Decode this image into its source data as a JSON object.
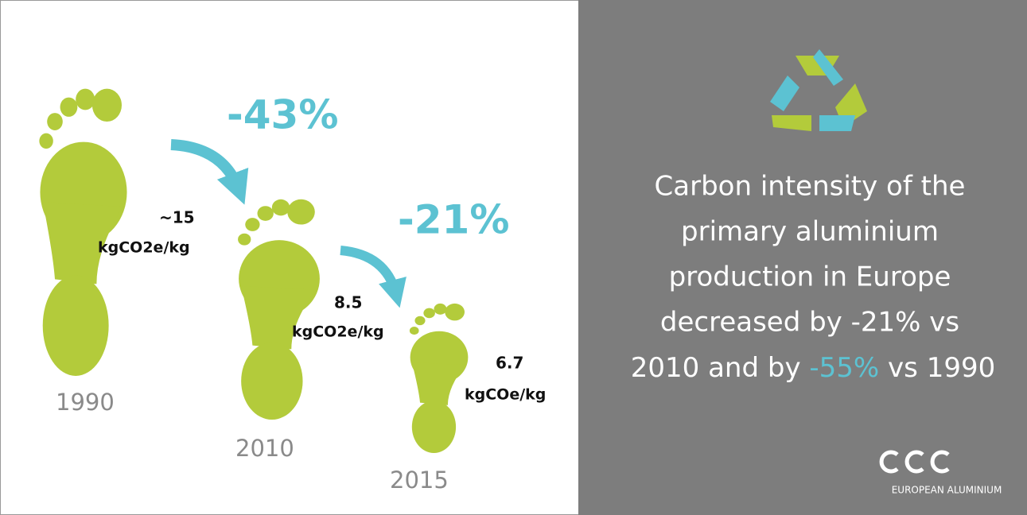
{
  "changes": [
    "-43%",
    "-21%"
  ],
  "footprints": [
    {
      "year": "1990",
      "value": "~15",
      "unit": "kgCO2e/kg"
    },
    {
      "year": "2010",
      "value": "8.5",
      "unit": "kgCO2e/kg"
    },
    {
      "year": "2015",
      "value": "6.7",
      "unit": "kgCOe/kg"
    }
  ],
  "statement": {
    "lines": [
      "Carbon intensity of the",
      "primary aluminium",
      "production in Europe",
      "decreased by -21% vs"
    ],
    "last_line": {
      "before": "2010 and by",
      "highlight": "-55%",
      "after": "vs 1990"
    }
  },
  "logo": "EUROPEAN ALUMINIUM"
}
